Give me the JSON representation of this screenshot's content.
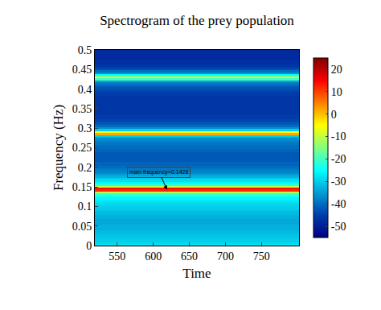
{
  "chart_data": {
    "type": "heatmap",
    "title": "Spectrogram of the prey population",
    "x_label": "Time",
    "y_label": "Frequency (Hz)",
    "xlim": [
      519,
      802
    ],
    "xticks": [
      550,
      600,
      650,
      700,
      750
    ],
    "ylim": [
      0,
      0.5
    ],
    "yticks": [
      0,
      0.05,
      0.1,
      0.15,
      0.2,
      0.25,
      0.3,
      0.35,
      0.4,
      0.45,
      0.5
    ],
    "x_edges": [
      519,
      802
    ],
    "y": [
      0,
      0.005,
      0.01,
      0.015,
      0.02,
      0.025,
      0.03,
      0.035,
      0.04,
      0.045,
      0.05,
      0.055,
      0.06,
      0.065,
      0.07,
      0.075,
      0.08,
      0.085,
      0.09,
      0.095,
      0.1,
      0.105,
      0.11,
      0.115,
      0.12,
      0.125,
      0.13,
      0.135,
      0.14,
      0.145,
      0.15,
      0.155,
      0.16,
      0.165,
      0.17,
      0.175,
      0.18,
      0.185,
      0.19,
      0.195,
      0.2,
      0.205,
      0.21,
      0.215,
      0.22,
      0.225,
      0.23,
      0.235,
      0.24,
      0.245,
      0.25,
      0.255,
      0.26,
      0.265,
      0.27,
      0.275,
      0.28,
      0.285,
      0.29,
      0.295,
      0.3,
      0.305,
      0.31,
      0.315,
      0.32,
      0.325,
      0.33,
      0.335,
      0.34,
      0.345,
      0.35,
      0.355,
      0.36,
      0.365,
      0.37,
      0.375,
      0.38,
      0.385,
      0.39,
      0.395,
      0.4,
      0.405,
      0.41,
      0.415,
      0.42,
      0.425,
      0.43,
      0.435,
      0.44,
      0.445,
      0.45,
      0.455,
      0.46,
      0.465,
      0.47,
      0.475,
      0.48,
      0.485,
      0.49,
      0.495,
      0.5
    ],
    "z": [
      [
        -28
      ],
      [
        -29
      ],
      [
        -30
      ],
      [
        -30
      ],
      [
        -31
      ],
      [
        -31
      ],
      [
        -32
      ],
      [
        -32
      ],
      [
        -33
      ],
      [
        -33
      ],
      [
        -33
      ],
      [
        -34
      ],
      [
        -34
      ],
      [
        -34
      ],
      [
        -33
      ],
      [
        -33
      ],
      [
        -32
      ],
      [
        -32
      ],
      [
        -31
      ],
      [
        -30
      ],
      [
        -30
      ],
      [
        -29
      ],
      [
        -28
      ],
      [
        -27
      ],
      [
        -26
      ],
      [
        -24
      ],
      [
        -21
      ],
      [
        -12
      ],
      [
        12
      ],
      [
        14
      ],
      [
        -10
      ],
      [
        -22
      ],
      [
        -26
      ],
      [
        -28
      ],
      [
        -30
      ],
      [
        -33
      ],
      [
        -35
      ],
      [
        -37
      ],
      [
        -38
      ],
      [
        -39
      ],
      [
        -40
      ],
      [
        -41
      ],
      [
        -41
      ],
      [
        -42
      ],
      [
        -42
      ],
      [
        -42
      ],
      [
        -42
      ],
      [
        -42
      ],
      [
        -41
      ],
      [
        -41
      ],
      [
        -40
      ],
      [
        -40
      ],
      [
        -39
      ],
      [
        -38
      ],
      [
        -37
      ],
      [
        -35
      ],
      [
        -30
      ],
      [
        2
      ],
      [
        -5
      ],
      [
        -30
      ],
      [
        -36
      ],
      [
        -40
      ],
      [
        -42
      ],
      [
        -43
      ],
      [
        -44
      ],
      [
        -45
      ],
      [
        -45
      ],
      [
        -46
      ],
      [
        -46
      ],
      [
        -46
      ],
      [
        -46
      ],
      [
        -46
      ],
      [
        -46
      ],
      [
        -46
      ],
      [
        -46
      ],
      [
        -46
      ],
      [
        -46
      ],
      [
        -45
      ],
      [
        -45
      ],
      [
        -44
      ],
      [
        -43
      ],
      [
        -42
      ],
      [
        -40
      ],
      [
        -38
      ],
      [
        -34
      ],
      [
        -20
      ],
      [
        -5
      ],
      [
        -25
      ],
      [
        -36
      ],
      [
        -40
      ],
      [
        -43
      ],
      [
        -45
      ],
      [
        -46
      ],
      [
        -47
      ],
      [
        -47
      ],
      [
        -48
      ],
      [
        -48
      ],
      [
        -48
      ],
      [
        -48
      ],
      [
        -48
      ],
      [
        -48
      ]
    ],
    "colorbar": {
      "range": [
        -55,
        25
      ],
      "ticks": [
        -50,
        -40,
        -30,
        -20,
        -10,
        0,
        10,
        20
      ]
    },
    "annotation": {
      "text": "main frequency=0.1428",
      "x": 619,
      "y": 0.143
    }
  }
}
